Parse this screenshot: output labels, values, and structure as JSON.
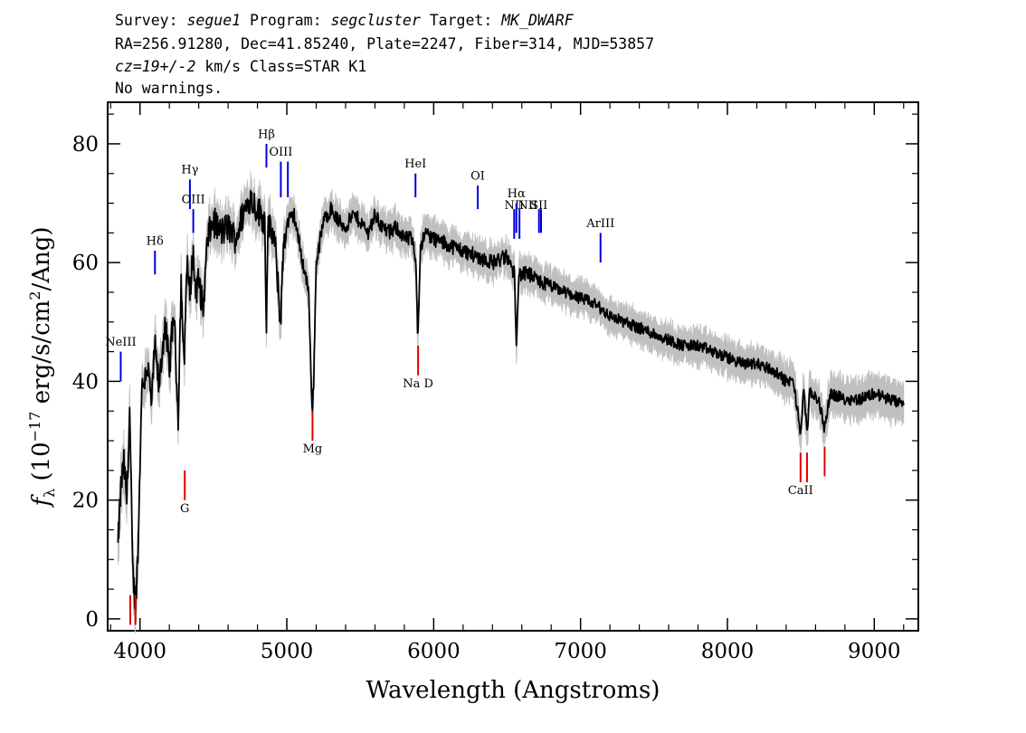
{
  "header": {
    "line1": {
      "survey_label": "Survey: ",
      "survey": "segue1",
      "program_label": " Program: ",
      "program": "segcluster",
      "target_label": " Target: ",
      "target": "MK_DWARF"
    },
    "line2": "RA=256.91280, Dec=41.85240, Plate=2247, Fiber=314, MJD=53857",
    "line3": {
      "cz": "cz=19+/-2",
      "rest": " km/s Class=STAR K1"
    },
    "line4": "No warnings."
  },
  "chart_data": {
    "type": "line",
    "xlabel": "Wavelength (Angstroms)",
    "ylabel": "f_λ (10^-17 erg/s/cm^2/Ang)",
    "xlim": [
      3780,
      9300
    ],
    "ylim": [
      -2,
      87
    ],
    "x_ticks": [
      4000,
      5000,
      6000,
      7000,
      8000,
      9000
    ],
    "x_tick_labels": [
      "4000",
      "5000",
      "6000",
      "7000",
      "8000",
      "9000"
    ],
    "y_ticks": [
      0,
      20,
      40,
      60,
      80
    ],
    "y_tick_labels": [
      "0",
      "20",
      "40",
      "60",
      "80"
    ],
    "grid": false,
    "series": [
      {
        "color": "#000000",
        "error_color": "#c0c0c0",
        "x": [
          3850,
          3870,
          3890,
          3910,
          3930,
          3950,
          3970,
          3990,
          4010,
          4050,
          4080,
          4100,
          4130,
          4170,
          4200,
          4230,
          4260,
          4280,
          4300,
          4320,
          4340,
          4360,
          4380,
          4400,
          4430,
          4460,
          4500,
          4550,
          4600,
          4650,
          4700,
          4750,
          4800,
          4850,
          4861,
          4870,
          4900,
          4920,
          4957,
          4980,
          5010,
          5050,
          5100,
          5150,
          5167,
          5175,
          5183,
          5200,
          5250,
          5300,
          5350,
          5400,
          5450,
          5500,
          5550,
          5600,
          5650,
          5700,
          5750,
          5800,
          5850,
          5880,
          5890,
          5896,
          5910,
          5950,
          6000,
          6100,
          6200,
          6300,
          6400,
          6500,
          6550,
          6563,
          6580,
          6650,
          6700,
          6800,
          6900,
          7000,
          7100,
          7200,
          7300,
          7400,
          7500,
          7600,
          7700,
          7800,
          7900,
          8000,
          8100,
          8200,
          8300,
          8400,
          8450,
          8498,
          8520,
          8542,
          8560,
          8620,
          8662,
          8700,
          8800,
          8900,
          9000,
          9100,
          9200
        ],
        "y": [
          12,
          22,
          26,
          20,
          35,
          8,
          2,
          14,
          38,
          43,
          36,
          46,
          39,
          50,
          42,
          52,
          34,
          57,
          42,
          61,
          54,
          62,
          55,
          57,
          52,
          64,
          67,
          65,
          66,
          64,
          68,
          71,
          69,
          67,
          49,
          66,
          65,
          63,
          50,
          64,
          67,
          68,
          61,
          55,
          38,
          36,
          40,
          60,
          67,
          69,
          67,
          66,
          68,
          67,
          65,
          68,
          66,
          65,
          66,
          64,
          64,
          60,
          49,
          50,
          63,
          65,
          64,
          63,
          62,
          61,
          60,
          61,
          58,
          47,
          58,
          58,
          57,
          56,
          55,
          54,
          53,
          51,
          50,
          49,
          48,
          47,
          46,
          46,
          45,
          44,
          43,
          43,
          42,
          40,
          40,
          31,
          39,
          31,
          38,
          37,
          32,
          38,
          37,
          37,
          38,
          37,
          36
        ],
        "err": [
          3.5,
          3.5,
          3.5,
          3.5,
          3.5,
          3.5,
          3.5,
          3.5,
          3,
          3,
          3,
          3,
          3,
          3,
          3,
          3,
          3,
          3,
          3,
          3,
          3,
          3,
          3,
          3,
          3,
          3,
          2.8,
          2.8,
          2.8,
          2.8,
          2.8,
          2.8,
          2.8,
          2.8,
          2.8,
          2.8,
          2.8,
          2.8,
          2.8,
          2.8,
          2.8,
          2.5,
          2.5,
          2.5,
          2.5,
          2.5,
          2.5,
          2.5,
          2.5,
          2.5,
          2.5,
          2.5,
          2.5,
          2.5,
          2.5,
          2.5,
          2.5,
          2.5,
          2.5,
          2.5,
          2.5,
          2.5,
          2.5,
          2.5,
          2.5,
          2.5,
          2.5,
          2.4,
          2.4,
          2.4,
          2.4,
          2.4,
          2.4,
          2.4,
          2.4,
          2.4,
          2.4,
          2.4,
          2.4,
          2.4,
          2.4,
          2.4,
          2.4,
          2.4,
          2.4,
          2.4,
          2.4,
          2.6,
          2.6,
          2.6,
          2.6,
          2.6,
          2.8,
          2.8,
          2.8,
          2.8,
          2.8,
          2.8,
          2.8,
          2.8,
          2.8,
          2.8,
          3,
          3,
          3,
          3,
          3
        ]
      }
    ],
    "emission_lines": [
      {
        "label": "NeIII",
        "x": 3869,
        "y0": 40,
        "y1": 45,
        "label_y": 46
      },
      {
        "label": "Hδ",
        "x": 4102,
        "y0": 58,
        "y1": 62,
        "label_y": 63
      },
      {
        "label": "Hγ",
        "x": 4340,
        "y0": 69,
        "y1": 74,
        "label_y": 75
      },
      {
        "label": "OIII",
        "x": 4363,
        "y0": 65,
        "y1": 69,
        "label_y": 70
      },
      {
        "label": "Hβ",
        "x": 4861,
        "y0": 76,
        "y1": 80,
        "label_y": 81
      },
      {
        "label": "OIII",
        "x": 4959,
        "y0": 71,
        "y1": 77,
        "label_y": 78
      },
      {
        "label": "",
        "x": 5007,
        "y0": 71,
        "y1": 77,
        "label_y": 78
      },
      {
        "label": "HeI",
        "x": 5876,
        "y0": 71,
        "y1": 75,
        "label_y": 76
      },
      {
        "label": "OI",
        "x": 6300,
        "y0": 69,
        "y1": 73,
        "label_y": 74
      },
      {
        "label": "NII",
        "x": 6548,
        "y0": 64,
        "y1": 69,
        "label_y": 69
      },
      {
        "label": "Hα",
        "x": 6563,
        "y0": 65,
        "y1": 70,
        "label_y": 71
      },
      {
        "label": "",
        "x": 6584,
        "y0": 64,
        "y1": 69,
        "label_y": 69
      },
      {
        "label": "SII",
        "x": 6717,
        "y0": 65,
        "y1": 69,
        "label_y": 69
      },
      {
        "label": "",
        "x": 6731,
        "y0": 65,
        "y1": 69,
        "label_y": 69
      },
      {
        "label": "ArIII",
        "x": 7136,
        "y0": 60,
        "y1": 65,
        "label_y": 66
      },
      {
        "label": "NII",
        "x": 6640,
        "y0": 0,
        "y1": 0,
        "label_y": 69,
        "label_only": true
      }
    ],
    "absorption_lines": [
      {
        "label": "",
        "x": 3934,
        "y0": -1,
        "y1": 4,
        "label_y": -4
      },
      {
        "label": "",
        "x": 3969,
        "y0": -1,
        "y1": 4,
        "label_y": -4
      },
      {
        "label": "G",
        "x": 4305,
        "y0": 20,
        "y1": 25,
        "label_y": 18
      },
      {
        "label": "Mg",
        "x": 5175,
        "y0": 30,
        "y1": 35,
        "label_y": 28
      },
      {
        "label": "Na D",
        "x": 5894,
        "y0": 41,
        "y1": 46,
        "label_y": 39
      },
      {
        "label": "CaII",
        "x": 8498,
        "y0": 23,
        "y1": 28,
        "label_y": 21
      },
      {
        "label": "",
        "x": 8542,
        "y0": 23,
        "y1": 28,
        "label_y": 21
      },
      {
        "label": "",
        "x": 8662,
        "y0": 24,
        "y1": 29,
        "label_y": 21
      }
    ],
    "emission_color": "#0000dd",
    "absorption_color": "#e00000"
  }
}
